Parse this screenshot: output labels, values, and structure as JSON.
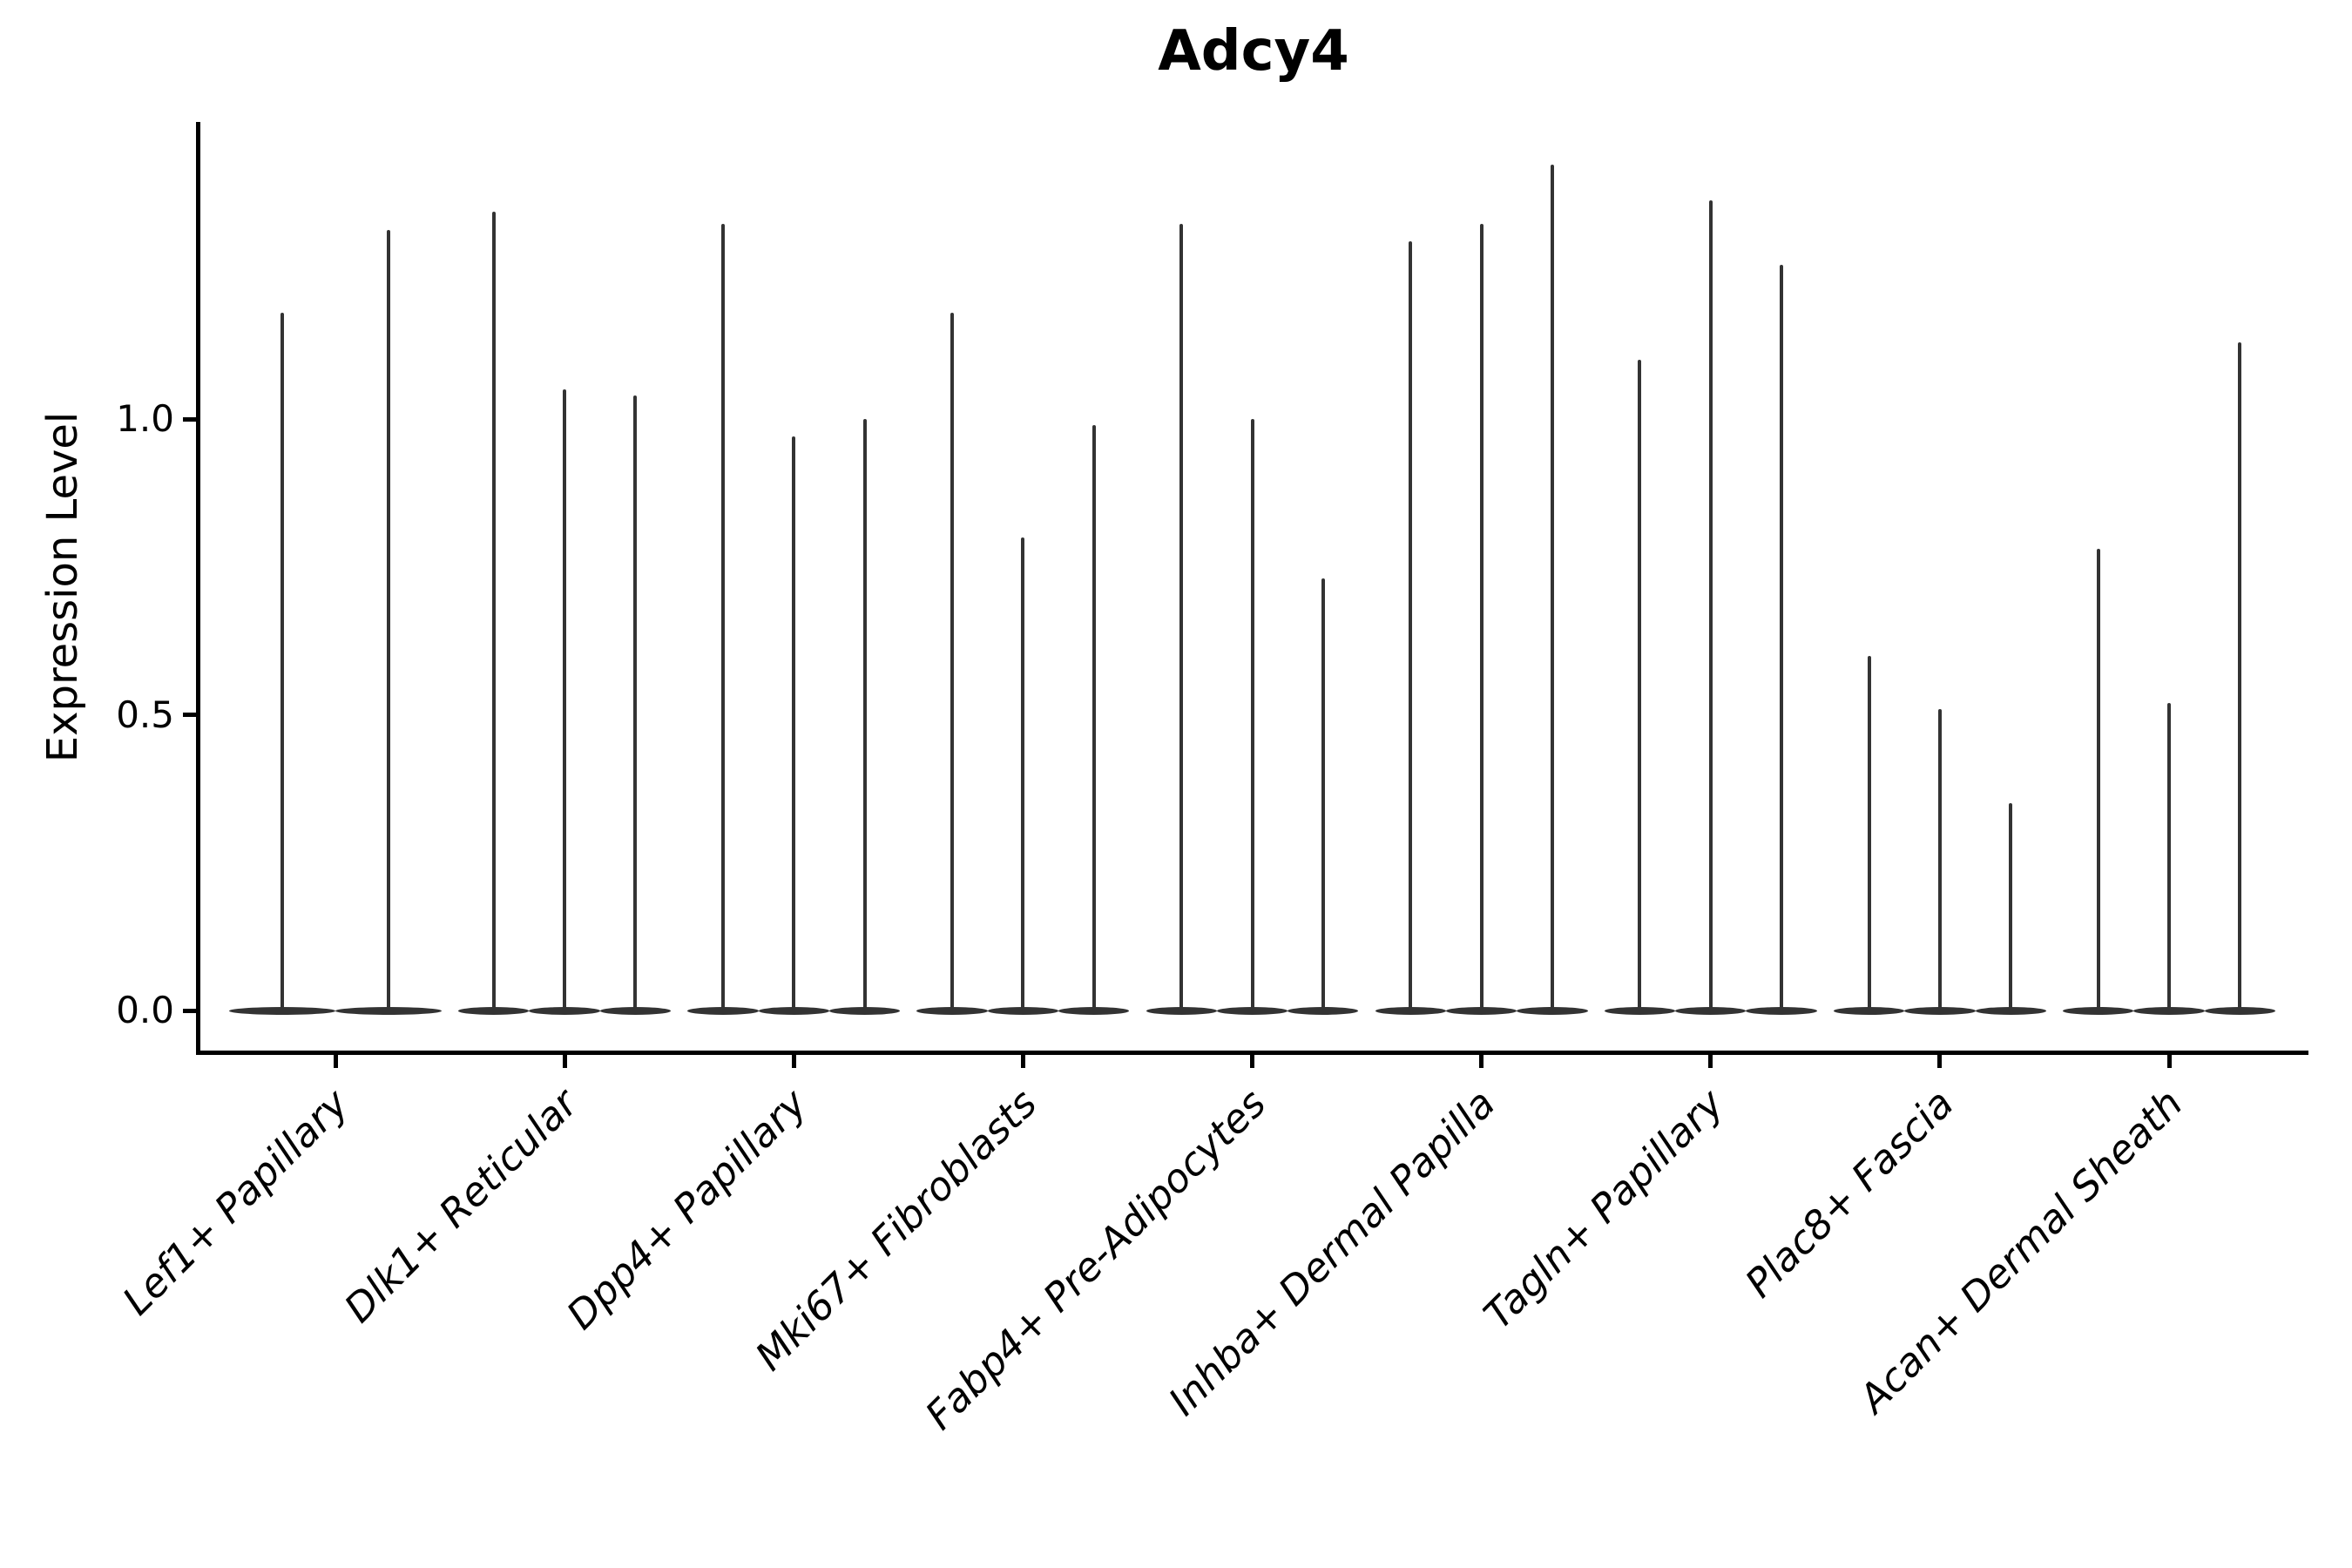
{
  "figure": {
    "title": "Adcy4",
    "background_color": "#ffffff"
  },
  "axes": {
    "ylabel": "Expression Level",
    "ytick_labels": [
      "0.0",
      "0.5",
      "1.0"
    ],
    "axis_color": "#000000",
    "tick_label_color": "#000000"
  },
  "chart_data": {
    "type": "violin",
    "title": "Adcy4",
    "xlabel": "",
    "ylabel": "Expression Level",
    "yticks": [
      0.0,
      0.5,
      1.0
    ],
    "ylim": [
      -0.07,
      1.5
    ],
    "grid": "off",
    "legend": "none",
    "violin_color": "#333333",
    "violin_style": "near-zero density mass at 0 with thin vertical tail up to the maximum expression value",
    "categories": [
      "Lef1+ Papillary",
      "Dlk1+ Reticular",
      "Dpp4+ Papillary",
      "Mki67+ Fibroblasts",
      "Fabp4+ Pre-Adipocytes",
      "Inhba+ Dermal Papilla",
      "Tagln+ Papillary",
      "Plac8+ Fascia",
      "Acan+ Dermal Sheath"
    ],
    "groups": [
      {
        "label": "Lef1+ Papillary",
        "violin_maxima": [
          1.18,
          1.32
        ]
      },
      {
        "label": "Dlk1+ Reticular",
        "violin_maxima": [
          1.35,
          1.05,
          1.04
        ]
      },
      {
        "label": "Dpp4+ Papillary",
        "violin_maxima": [
          1.33,
          0.97,
          1.0
        ]
      },
      {
        "label": "Mki67+ Fibroblasts",
        "violin_maxima": [
          1.18,
          0.8,
          0.99
        ]
      },
      {
        "label": "Fabp4+ Pre-Adipocytes",
        "violin_maxima": [
          1.33,
          1.0,
          0.73
        ]
      },
      {
        "label": "Inhba+ Dermal Papilla",
        "violin_maxima": [
          1.3,
          1.33,
          1.43
        ]
      },
      {
        "label": "Tagln+ Papillary",
        "violin_maxima": [
          1.1,
          1.37,
          1.26
        ]
      },
      {
        "label": "Plac8+ Fascia",
        "violin_maxima": [
          0.6,
          0.51,
          0.35
        ]
      },
      {
        "label": "Acan+ Dermal Sheath",
        "violin_maxima": [
          0.78,
          0.52,
          1.13
        ]
      }
    ]
  }
}
